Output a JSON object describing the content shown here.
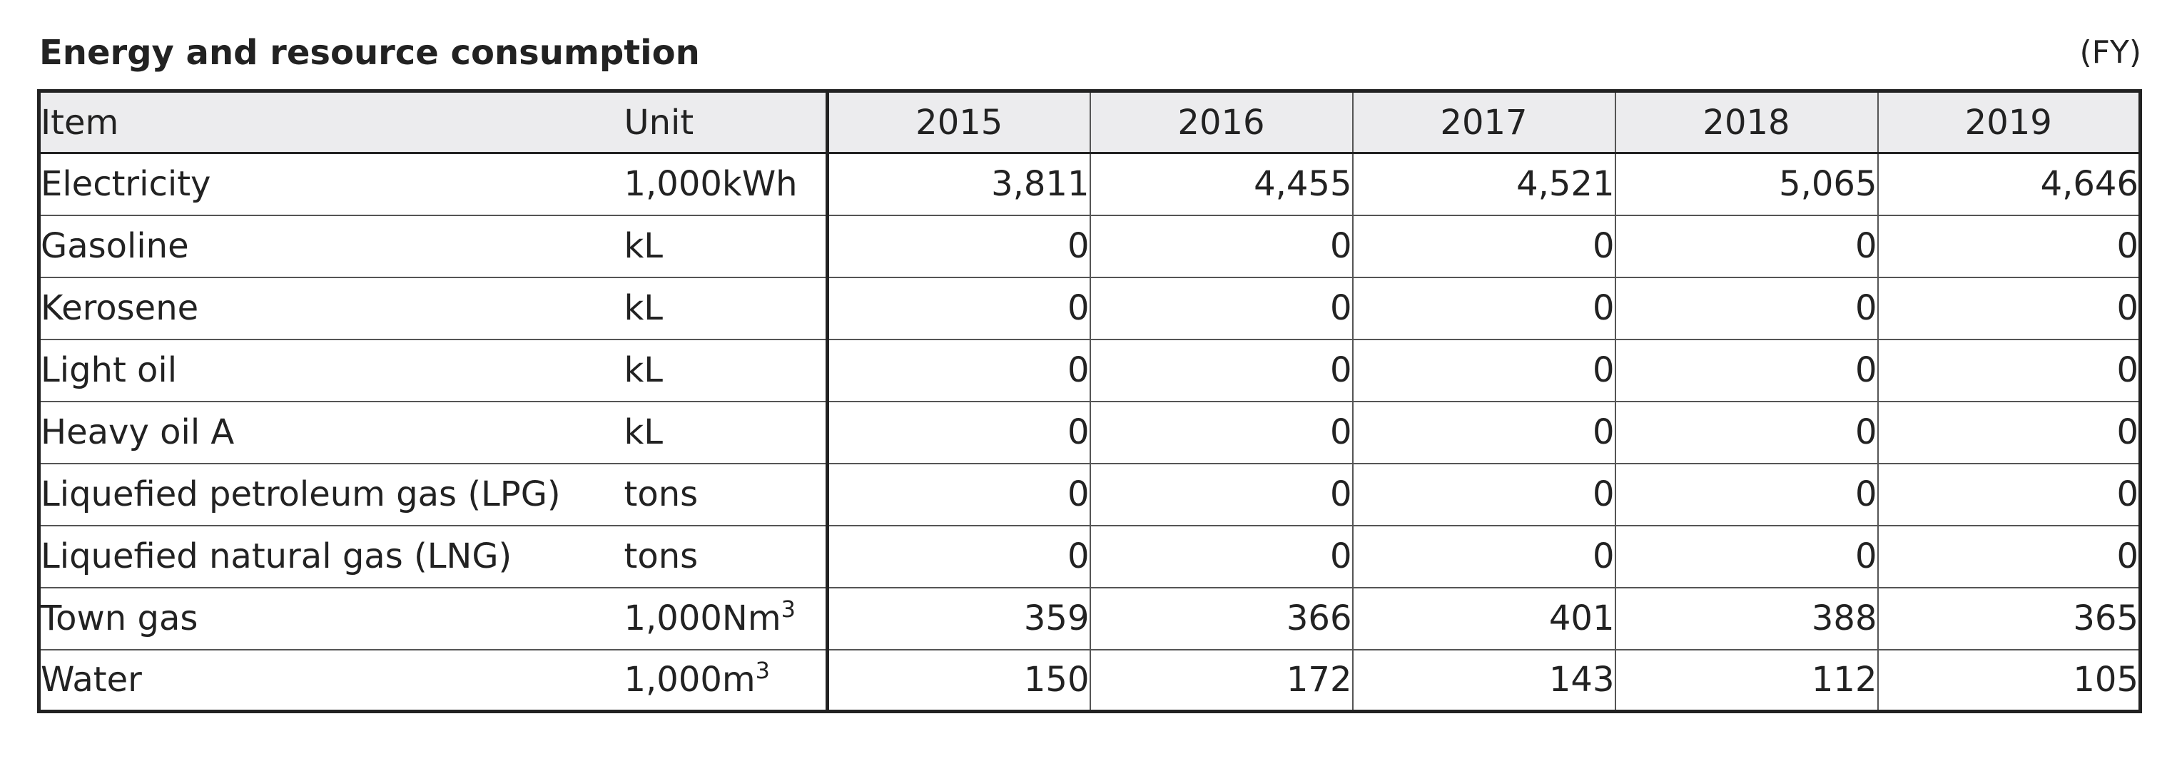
{
  "header": {
    "title": "Energy and resource consumption",
    "period_note": "(FY)"
  },
  "table": {
    "columns": {
      "item": "Item",
      "unit": "Unit",
      "years": [
        "2015",
        "2016",
        "2017",
        "2018",
        "2019"
      ]
    },
    "rows": [
      {
        "item": "Electricity",
        "unit": "1,000kWh",
        "unit_sup": "",
        "values": [
          "3,811",
          "4,455",
          "4,521",
          "5,065",
          "4,646"
        ]
      },
      {
        "item": "Gasoline",
        "unit": "kL",
        "unit_sup": "",
        "values": [
          "0",
          "0",
          "0",
          "0",
          "0"
        ]
      },
      {
        "item": "Kerosene",
        "unit": "kL",
        "unit_sup": "",
        "values": [
          "0",
          "0",
          "0",
          "0",
          "0"
        ]
      },
      {
        "item": "Light oil",
        "unit": "kL",
        "unit_sup": "",
        "values": [
          "0",
          "0",
          "0",
          "0",
          "0"
        ]
      },
      {
        "item": "Heavy oil A",
        "unit": "kL",
        "unit_sup": "",
        "values": [
          "0",
          "0",
          "0",
          "0",
          "0"
        ]
      },
      {
        "item": "Liquefied petroleum gas (LPG)",
        "unit": "tons",
        "unit_sup": "",
        "values": [
          "0",
          "0",
          "0",
          "0",
          "0"
        ]
      },
      {
        "item": "Liquefied natural gas (LNG)",
        "unit": "tons",
        "unit_sup": "",
        "values": [
          "0",
          "0",
          "0",
          "0",
          "0"
        ]
      },
      {
        "item": "Town gas",
        "unit": "1,000Nm",
        "unit_sup": "3",
        "values": [
          "359",
          "366",
          "401",
          "388",
          "365"
        ]
      },
      {
        "item": "Water",
        "unit": "1,000m",
        "unit_sup": "3",
        "values": [
          "150",
          "172",
          "143",
          "112",
          "105"
        ]
      }
    ]
  }
}
